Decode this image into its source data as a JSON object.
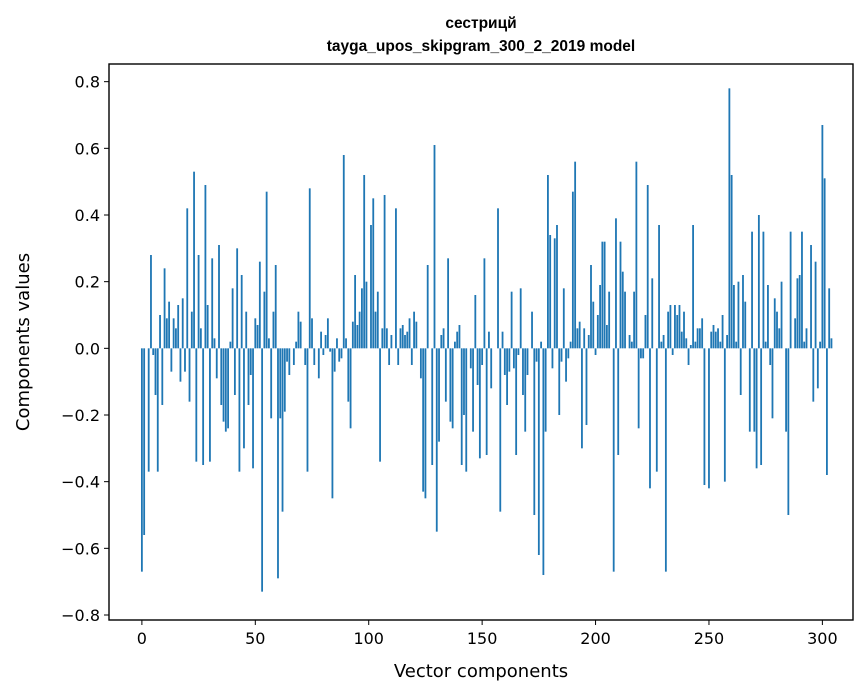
{
  "chart_data": {
    "type": "bar",
    "title": "сестрицй",
    "subtitle": "tayga_upos_skipgram_300_2_2019 model",
    "xlabel": "Vector components",
    "ylabel": "Components values",
    "xlim": [
      -14.5,
      313.5
    ],
    "ylim": [
      -0.815,
      0.853
    ],
    "xticks": [
      0,
      50,
      100,
      150,
      200,
      250,
      300
    ],
    "xtick_labels": [
      "0",
      "50",
      "100",
      "150",
      "200",
      "250",
      "300"
    ],
    "yticks": [
      -0.8,
      -0.6,
      -0.4,
      -0.2,
      0.0,
      0.2,
      0.4,
      0.6,
      0.8
    ],
    "ytick_labels": [
      "−0.8",
      "−0.6",
      "−0.4",
      "−0.2",
      "0.0",
      "0.2",
      "0.4",
      "0.6",
      "0.8"
    ],
    "bar_color": "#1f77b4",
    "grid": false,
    "values": [
      -0.67,
      -0.56,
      0.0,
      -0.37,
      0.28,
      -0.02,
      -0.14,
      -0.37,
      0.1,
      -0.17,
      0.24,
      0.09,
      0.14,
      -0.07,
      0.09,
      0.06,
      0.13,
      -0.1,
      0.15,
      -0.07,
      0.42,
      -0.16,
      0.11,
      0.53,
      -0.34,
      0.28,
      0.06,
      -0.35,
      0.49,
      0.13,
      -0.34,
      0.27,
      0.03,
      -0.09,
      0.31,
      -0.17,
      -0.22,
      -0.25,
      -0.24,
      0.02,
      0.18,
      -0.14,
      0.3,
      -0.37,
      0.22,
      -0.3,
      0.11,
      -0.17,
      -0.08,
      -0.36,
      0.09,
      0.07,
      0.26,
      -0.73,
      0.17,
      0.47,
      0.03,
      -0.21,
      0.11,
      0.25,
      -0.69,
      -0.21,
      -0.49,
      -0.19,
      -0.04,
      -0.08,
      0.0,
      -0.05,
      0.02,
      0.11,
      0.08,
      0.0,
      -0.05,
      -0.37,
      0.48,
      0.09,
      -0.05,
      0.0,
      -0.09,
      0.05,
      -0.02,
      0.04,
      0.09,
      -0.01,
      -0.45,
      -0.07,
      0.03,
      -0.04,
      -0.03,
      0.58,
      0.03,
      -0.16,
      -0.24,
      0.08,
      0.22,
      0.07,
      0.11,
      0.18,
      0.52,
      0.2,
      0.0,
      0.37,
      0.45,
      0.11,
      0.17,
      -0.34,
      0.06,
      0.46,
      0.06,
      -0.05,
      0.04,
      0.0,
      0.42,
      -0.05,
      0.06,
      0.07,
      0.04,
      0.05,
      0.09,
      -0.05,
      0.11,
      0.08,
      0.0,
      -0.09,
      -0.43,
      -0.45,
      0.25,
      0.0,
      -0.35,
      0.61,
      -0.55,
      -0.28,
      0.04,
      0.06,
      -0.16,
      0.27,
      -0.22,
      -0.24,
      0.02,
      0.05,
      0.07,
      -0.35,
      -0.2,
      -0.37,
      0.0,
      -0.06,
      -0.25,
      0.16,
      -0.11,
      -0.33,
      -0.05,
      0.27,
      -0.32,
      0.05,
      -0.12,
      0.0,
      0.0,
      0.42,
      -0.49,
      0.05,
      -0.08,
      -0.17,
      -0.07,
      0.17,
      -0.06,
      -0.32,
      -0.02,
      0.18,
      -0.14,
      -0.25,
      -0.08,
      0.0,
      0.11,
      -0.5,
      -0.04,
      -0.62,
      0.02,
      -0.68,
      -0.25,
      0.52,
      0.34,
      -0.06,
      0.33,
      0.37,
      -0.2,
      -0.04,
      0.18,
      -0.1,
      -0.03,
      0.02,
      0.47,
      0.56,
      0.06,
      0.08,
      -0.3,
      0.06,
      -0.23,
      0.04,
      0.25,
      0.14,
      -0.02,
      0.1,
      0.19,
      0.32,
      0.32,
      0.07,
      0.17,
      0.0,
      -0.67,
      0.39,
      -0.32,
      0.32,
      0.23,
      0.17,
      0.0,
      0.04,
      0.02,
      0.17,
      0.56,
      -0.24,
      -0.03,
      -0.03,
      0.1,
      0.49,
      -0.42,
      0.21,
      0.0,
      -0.37,
      0.37,
      0.02,
      0.04,
      -0.67,
      0.11,
      0.13,
      -0.02,
      0.13,
      0.1,
      0.13,
      0.05,
      0.11,
      0.03,
      -0.05,
      0.01,
      0.37,
      0.02,
      0.06,
      0.06,
      0.09,
      -0.41,
      0.0,
      -0.42,
      0.05,
      0.07,
      0.05,
      0.06,
      0.02,
      0.1,
      -0.4,
      0.04,
      0.78,
      0.52,
      0.19,
      0.02,
      0.2,
      -0.14,
      0.22,
      0.14,
      0.0,
      -0.25,
      0.35,
      -0.25,
      -0.36,
      0.4,
      -0.35,
      0.35,
      0.02,
      0.19,
      -0.05,
      -0.21,
      0.15,
      0.11,
      0.06,
      0.2,
      0.0,
      -0.25,
      -0.5,
      0.35,
      0.0,
      0.09,
      0.21,
      0.22,
      0.35,
      0.02,
      0.06,
      0.0,
      0.31,
      -0.16,
      0.26,
      -0.12,
      0.02,
      0.67,
      0.51,
      -0.38,
      0.18,
      0.03
    ]
  }
}
